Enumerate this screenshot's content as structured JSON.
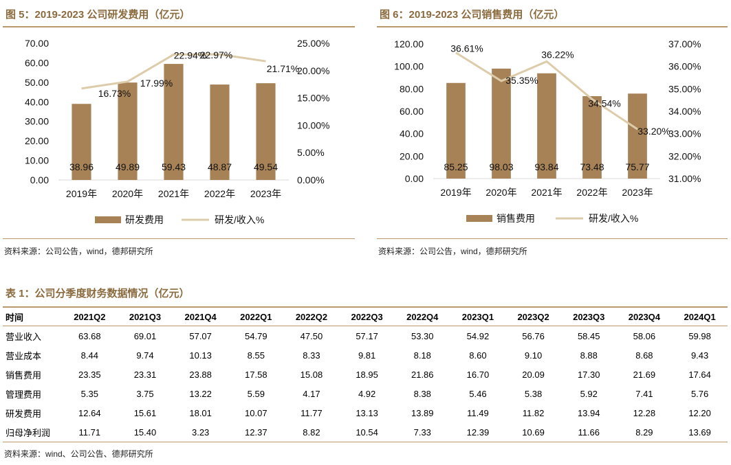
{
  "fig5": {
    "title": "图 5：2019-2023 公司研发费用（亿元）",
    "source": "资料来源：公司公告，wind，德邦研究所"
  },
  "fig6": {
    "title": "图 6：2019-2023 公司销售费用（亿元）",
    "source": "资料来源：公司公告，wind，德邦研究所"
  },
  "colors": {
    "bar": "#a88257",
    "line": "#ddccaa",
    "accent": "#b8976a"
  },
  "chart_data": [
    {
      "type": "bar",
      "title": "2019-2023 公司研发费用（亿元）",
      "categories": [
        "2019年",
        "2020年",
        "2021年",
        "2022年",
        "2023年"
      ],
      "series": [
        {
          "name": "研发费用",
          "type": "bar",
          "axis": "left",
          "values": [
            38.96,
            49.89,
            59.43,
            48.87,
            49.54
          ],
          "labels": [
            "38.96",
            "49.89",
            "59.43",
            "48.87",
            "49.54"
          ]
        },
        {
          "name": "研发/收入%",
          "type": "line",
          "axis": "right",
          "values": [
            16.73,
            17.99,
            22.94,
            22.97,
            21.71
          ],
          "labels": [
            "16.73%",
            "17.99%",
            "22.94%",
            "22.97%",
            "21.71%"
          ]
        }
      ],
      "y_left": {
        "min": 0,
        "max": 70,
        "step": 10,
        "ticks": [
          "0.00",
          "10.00",
          "20.00",
          "30.00",
          "40.00",
          "50.00",
          "60.00",
          "70.00"
        ]
      },
      "y_right": {
        "min": 0,
        "max": 25,
        "step": 5,
        "ticks": [
          "0.00%",
          "5.00%",
          "10.00%",
          "15.00%",
          "20.00%",
          "25.00%"
        ]
      },
      "legend": [
        "研发费用",
        "研发/收入%"
      ],
      "legend_position": "bottom"
    },
    {
      "type": "bar",
      "title": "2019-2023 公司销售费用（亿元）",
      "categories": [
        "2019年",
        "2020年",
        "2021年",
        "2022年",
        "2023年"
      ],
      "series": [
        {
          "name": "销售费用",
          "type": "bar",
          "axis": "left",
          "values": [
            85.25,
            98.03,
            93.84,
            73.48,
            75.77
          ],
          "labels": [
            "85.25",
            "98.03",
            "93.84",
            "73.48",
            "75.77"
          ]
        },
        {
          "name": "研发/收入%",
          "type": "line",
          "axis": "right",
          "values": [
            36.61,
            35.35,
            36.22,
            34.54,
            33.2
          ],
          "labels": [
            "36.61%",
            "35.35%",
            "36.22%",
            "34.54%",
            "33.20%"
          ]
        }
      ],
      "y_left": {
        "min": 0,
        "max": 120,
        "step": 20,
        "ticks": [
          "0.00",
          "20.00",
          "40.00",
          "60.00",
          "80.00",
          "100.00",
          "120.00"
        ]
      },
      "y_right": {
        "min": 31,
        "max": 37,
        "step": 1,
        "ticks": [
          "31.00%",
          "32.00%",
          "33.00%",
          "34.00%",
          "35.00%",
          "36.00%",
          "37.00%"
        ]
      },
      "legend": [
        "销售费用",
        "研发/收入%"
      ],
      "legend_position": "bottom"
    }
  ],
  "table": {
    "title": "表 1：公司分季度财务数据情况（亿元）",
    "headers": [
      "时间",
      "2021Q2",
      "2021Q3",
      "2021Q4",
      "2022Q1",
      "2022Q2",
      "2022Q3",
      "2022Q4",
      "2023Q1",
      "2023Q2",
      "2023Q3",
      "2023Q4",
      "2024Q1"
    ],
    "rows": [
      {
        "label": "营业收入",
        "values": [
          "63.68",
          "69.01",
          "57.07",
          "54.79",
          "47.50",
          "57.17",
          "53.30",
          "54.92",
          "56.76",
          "58.45",
          "58.06",
          "59.98"
        ]
      },
      {
        "label": "营业成本",
        "values": [
          "8.44",
          "9.74",
          "10.13",
          "8.55",
          "8.33",
          "9.81",
          "8.18",
          "8.60",
          "9.10",
          "8.88",
          "8.68",
          "9.43"
        ]
      },
      {
        "label": "销售费用",
        "values": [
          "23.35",
          "23.31",
          "23.88",
          "17.58",
          "15.08",
          "18.95",
          "21.86",
          "16.70",
          "20.09",
          "17.30",
          "21.69",
          "17.64"
        ]
      },
      {
        "label": "管理费用",
        "values": [
          "5.35",
          "3.75",
          "13.22",
          "5.59",
          "4.17",
          "4.92",
          "8.38",
          "5.46",
          "5.38",
          "5.92",
          "7.41",
          "5.76"
        ]
      },
      {
        "label": "研发费用",
        "values": [
          "12.64",
          "15.61",
          "18.01",
          "10.07",
          "11.77",
          "13.13",
          "13.89",
          "11.49",
          "11.82",
          "13.94",
          "12.28",
          "12.20"
        ]
      },
      {
        "label": "归母净利润",
        "values": [
          "11.71",
          "15.40",
          "3.23",
          "12.37",
          "8.82",
          "10.54",
          "7.33",
          "12.39",
          "10.69",
          "11.66",
          "8.29",
          "13.69"
        ]
      }
    ],
    "source": "资料来源：wind、公司公告、德邦研究所"
  }
}
